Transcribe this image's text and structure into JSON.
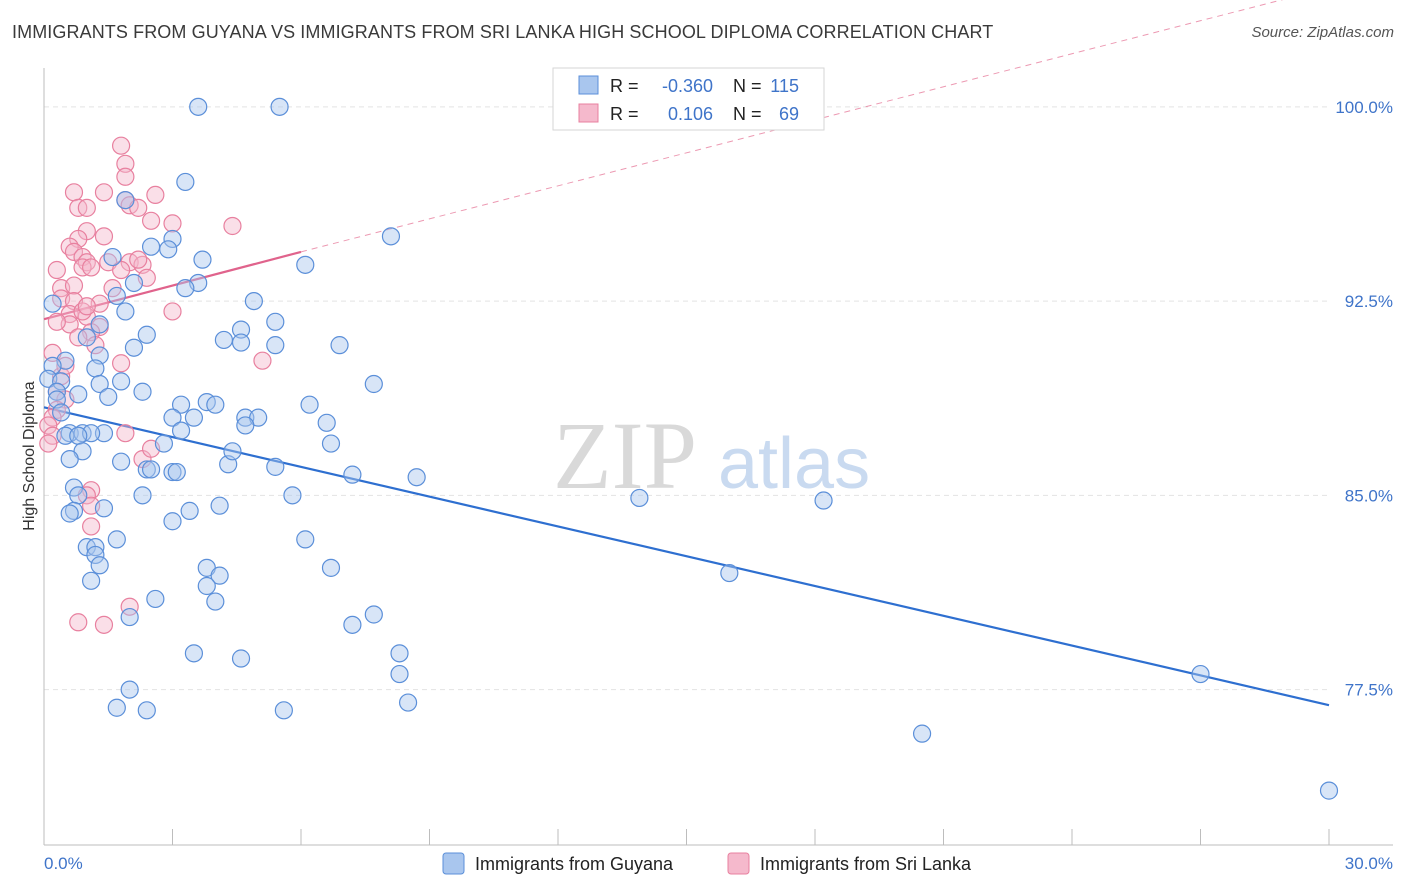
{
  "header": {
    "title": "IMMIGRANTS FROM GUYANA VS IMMIGRANTS FROM SRI LANKA HIGH SCHOOL DIPLOMA CORRELATION CHART",
    "source": "Source: ZipAtlas.com"
  },
  "watermark": {
    "zip": "ZIP",
    "atlas": "atlas"
  },
  "legend_box": {
    "rows": [
      {
        "r_label": "R =",
        "r_value": "-0.360",
        "n_label": "N =",
        "n_value": "115"
      },
      {
        "r_label": "R =",
        "r_value": "0.106",
        "n_label": "N =",
        "n_value": "69"
      }
    ]
  },
  "colors": {
    "guyana_fill": "#a9c6ee",
    "guyana_stroke": "#5b8fd9",
    "guyana_line": "#2e6fd0",
    "srilanka_fill": "#f5b9cc",
    "srilanka_stroke": "#e8809f",
    "srilanka_line": "#e0638c",
    "grid": "#e3e3e3",
    "axis_label": "#3f74c9"
  },
  "chart_data": {
    "type": "scatter",
    "title": "IMMIGRANTS FROM GUYANA VS IMMIGRANTS FROM SRI LANKA HIGH SCHOOL DIPLOMA CORRELATION CHART",
    "xlabel": "",
    "ylabel": "High School Diploma",
    "xlim": [
      0,
      30
    ],
    "ylim": [
      71.5,
      101.5
    ],
    "x_tick_labels": [
      "0.0%",
      "30.0%"
    ],
    "y_ticks": [
      77.5,
      85.0,
      92.5,
      100.0
    ],
    "y_tick_labels": [
      "77.5%",
      "85.0%",
      "92.5%",
      "100.0%"
    ],
    "legend": [
      "Immigrants from Guyana",
      "Immigrants from Sri Lanka"
    ],
    "series": [
      {
        "name": "Immigrants from Guyana",
        "R": -0.36,
        "N": 115,
        "trend": {
          "x": [
            0,
            30
          ],
          "y": [
            88.4,
            76.9
          ]
        },
        "points": [
          [
            3.6,
            100.0
          ],
          [
            5.5,
            100.0
          ],
          [
            3.3,
            97.1
          ],
          [
            1.9,
            96.4
          ],
          [
            8.1,
            95.0
          ],
          [
            3.0,
            94.9
          ],
          [
            2.5,
            94.6
          ],
          [
            2.9,
            94.5
          ],
          [
            1.6,
            94.2
          ],
          [
            3.7,
            94.1
          ],
          [
            6.1,
            93.9
          ],
          [
            3.6,
            93.2
          ],
          [
            3.3,
            93.0
          ],
          [
            1.7,
            92.7
          ],
          [
            4.9,
            92.5
          ],
          [
            1.9,
            92.1
          ],
          [
            5.4,
            91.7
          ],
          [
            1.3,
            91.6
          ],
          [
            4.6,
            91.4
          ],
          [
            2.4,
            91.2
          ],
          [
            4.2,
            91.0
          ],
          [
            4.6,
            90.9
          ],
          [
            5.4,
            90.8
          ],
          [
            6.9,
            90.8
          ],
          [
            2.1,
            90.7
          ],
          [
            0.5,
            90.2
          ],
          [
            1.3,
            90.4
          ],
          [
            0.2,
            90.0
          ],
          [
            1.2,
            89.9
          ],
          [
            0.1,
            89.5
          ],
          [
            0.4,
            89.4
          ],
          [
            1.3,
            89.3
          ],
          [
            1.8,
            89.4
          ],
          [
            7.7,
            89.3
          ],
          [
            2.3,
            89.0
          ],
          [
            0.3,
            89.0
          ],
          [
            0.3,
            88.7
          ],
          [
            1.5,
            88.8
          ],
          [
            3.2,
            88.5
          ],
          [
            3.8,
            88.6
          ],
          [
            4.0,
            88.5
          ],
          [
            6.2,
            88.5
          ],
          [
            0.4,
            88.2
          ],
          [
            3.0,
            88.0
          ],
          [
            3.5,
            88.0
          ],
          [
            4.7,
            88.0
          ],
          [
            5.0,
            88.0
          ],
          [
            4.7,
            87.7
          ],
          [
            6.6,
            87.8
          ],
          [
            0.6,
            87.4
          ],
          [
            0.9,
            87.4
          ],
          [
            1.4,
            87.4
          ],
          [
            1.1,
            87.4
          ],
          [
            0.5,
            87.3
          ],
          [
            0.8,
            87.3
          ],
          [
            3.2,
            87.5
          ],
          [
            2.8,
            87.0
          ],
          [
            0.9,
            86.7
          ],
          [
            0.6,
            86.4
          ],
          [
            1.8,
            86.3
          ],
          [
            4.3,
            86.2
          ],
          [
            5.4,
            86.1
          ],
          [
            2.4,
            86.0
          ],
          [
            2.5,
            86.0
          ],
          [
            3.0,
            85.9
          ],
          [
            3.1,
            85.9
          ],
          [
            7.2,
            85.8
          ],
          [
            8.7,
            85.7
          ],
          [
            0.7,
            85.3
          ],
          [
            0.8,
            85.0
          ],
          [
            2.3,
            85.0
          ],
          [
            5.8,
            85.0
          ],
          [
            13.9,
            84.9
          ],
          [
            18.2,
            84.8
          ],
          [
            0.7,
            84.4
          ],
          [
            1.4,
            84.5
          ],
          [
            3.4,
            84.4
          ],
          [
            4.1,
            84.6
          ],
          [
            3.0,
            84.0
          ],
          [
            0.6,
            84.3
          ],
          [
            1.7,
            83.3
          ],
          [
            1.0,
            83.0
          ],
          [
            1.2,
            83.0
          ],
          [
            6.1,
            83.3
          ],
          [
            1.2,
            82.7
          ],
          [
            1.3,
            82.3
          ],
          [
            6.7,
            82.2
          ],
          [
            3.8,
            82.2
          ],
          [
            4.1,
            81.9
          ],
          [
            16.0,
            82.0
          ],
          [
            1.1,
            81.7
          ],
          [
            3.8,
            81.5
          ],
          [
            2.6,
            81.0
          ],
          [
            4.0,
            80.9
          ],
          [
            2.0,
            80.3
          ],
          [
            7.7,
            80.4
          ],
          [
            7.2,
            80.0
          ],
          [
            3.5,
            78.9
          ],
          [
            4.6,
            78.7
          ],
          [
            8.3,
            78.9
          ],
          [
            8.3,
            78.1
          ],
          [
            27.0,
            78.1
          ],
          [
            2.0,
            77.5
          ],
          [
            1.7,
            76.8
          ],
          [
            2.4,
            76.7
          ],
          [
            5.6,
            76.7
          ],
          [
            8.5,
            77.0
          ],
          [
            20.5,
            75.8
          ],
          [
            30.0,
            73.6
          ],
          [
            0.2,
            92.4
          ],
          [
            1.0,
            91.1
          ],
          [
            2.1,
            93.2
          ],
          [
            6.7,
            87.0
          ],
          [
            0.8,
            88.9
          ],
          [
            4.4,
            86.7
          ]
        ]
      },
      {
        "name": "Immigrants from Sri Lanka",
        "R": 0.106,
        "N": 69,
        "trend": {
          "x": [
            0,
            6.0
          ],
          "y": [
            91.8,
            94.4
          ],
          "dashed_extension": {
            "x": [
              6.0,
              30
            ],
            "y": [
              94.4,
              104.6
            ]
          }
        },
        "points": [
          [
            1.8,
            98.5
          ],
          [
            1.9,
            97.8
          ],
          [
            1.9,
            97.3
          ],
          [
            0.7,
            96.7
          ],
          [
            1.4,
            96.7
          ],
          [
            2.6,
            96.6
          ],
          [
            1.9,
            96.4
          ],
          [
            2.0,
            96.2
          ],
          [
            2.2,
            96.1
          ],
          [
            0.8,
            96.1
          ],
          [
            1.0,
            96.1
          ],
          [
            2.5,
            95.6
          ],
          [
            3.0,
            95.5
          ],
          [
            4.4,
            95.4
          ],
          [
            1.0,
            95.2
          ],
          [
            1.4,
            95.0
          ],
          [
            0.8,
            94.9
          ],
          [
            0.6,
            94.6
          ],
          [
            0.7,
            94.4
          ],
          [
            0.9,
            94.2
          ],
          [
            1.0,
            94.0
          ],
          [
            1.5,
            94.0
          ],
          [
            2.0,
            94.0
          ],
          [
            2.3,
            93.9
          ],
          [
            0.3,
            93.7
          ],
          [
            0.9,
            93.8
          ],
          [
            1.1,
            93.8
          ],
          [
            1.8,
            93.7
          ],
          [
            2.4,
            93.4
          ],
          [
            0.4,
            93.0
          ],
          [
            0.7,
            93.1
          ],
          [
            1.6,
            93.0
          ],
          [
            0.4,
            92.6
          ],
          [
            0.7,
            92.5
          ],
          [
            1.3,
            92.4
          ],
          [
            3.0,
            92.1
          ],
          [
            0.6,
            92.0
          ],
          [
            1.0,
            91.9
          ],
          [
            0.6,
            91.6
          ],
          [
            0.3,
            91.7
          ],
          [
            1.3,
            91.5
          ],
          [
            1.1,
            91.3
          ],
          [
            0.8,
            91.1
          ],
          [
            1.2,
            90.8
          ],
          [
            0.2,
            90.5
          ],
          [
            1.8,
            90.1
          ],
          [
            5.1,
            90.2
          ],
          [
            0.4,
            89.6
          ],
          [
            0.3,
            89.0
          ],
          [
            0.5,
            88.7
          ],
          [
            0.3,
            88.3
          ],
          [
            0.2,
            88.0
          ],
          [
            0.1,
            87.7
          ],
          [
            0.2,
            87.3
          ],
          [
            0.1,
            87.0
          ],
          [
            1.9,
            87.4
          ],
          [
            1.1,
            85.2
          ],
          [
            1.0,
            85.0
          ],
          [
            1.1,
            84.6
          ],
          [
            1.1,
            83.8
          ],
          [
            2.3,
            86.4
          ],
          [
            2.5,
            86.8
          ],
          [
            2.0,
            80.7
          ],
          [
            0.8,
            80.1
          ],
          [
            1.4,
            80.0
          ],
          [
            0.9,
            92.1
          ],
          [
            0.5,
            90.0
          ],
          [
            1.0,
            92.3
          ],
          [
            2.2,
            94.1
          ]
        ]
      }
    ]
  }
}
